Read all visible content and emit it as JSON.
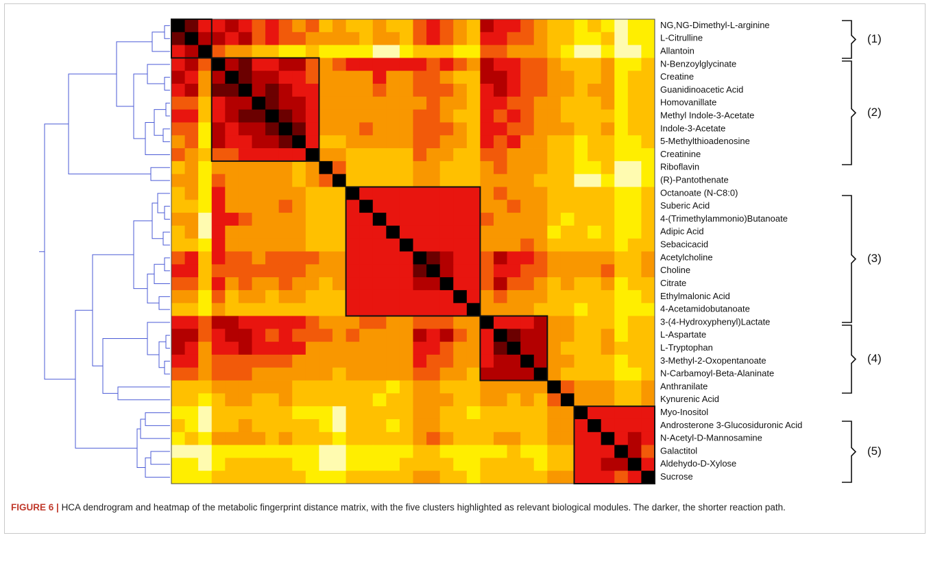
{
  "chart_data": {
    "type": "heatmap",
    "labels": [
      "NG,NG-Dimethyl-L-arginine",
      "L-Citrulline",
      "Allantoin",
      "N-Benzoylglycinate",
      "Creatine",
      "Guanidinoacetic Acid",
      "Homovanillate",
      "Methyl Indole-3-Acetate",
      "Indole-3-Acetate",
      "5-Methylthioadenosine",
      "Creatinine",
      "Riboflavin",
      "(R)-Pantothenate",
      "Octanoate (N-C8:0)",
      "Suberic Acid",
      "4-(Trimethylammonio)Butanoate",
      "Adipic Acid",
      "Sebacicacid",
      "Acetylcholine",
      "Choline",
      "Citrate",
      "Ethylmalonic Acid",
      "4-Acetamidobutanoate",
      "3-(4-Hydroxyphenyl)Lactate",
      "L-Aspartate",
      "L-Tryptophan",
      "3-Methyl-2-Oxopentanoate",
      "N-Carbamoyl-Beta-Alaninate",
      "Anthranilate",
      "Kynurenic Acid",
      "Myo-Inositol",
      "Androsterone 3-Glucosiduronic Acid",
      "N-Acetyl-D-Mannosamine",
      "Galactitol",
      "Aldehydo-D-Xylose",
      "Sucrose"
    ],
    "colors": [
      "#000000",
      "#6b0000",
      "#b30000",
      "#e8150f",
      "#f25a0a",
      "#f99700",
      "#ffc000",
      "#ffee00",
      "#fffbb0"
    ],
    "values": [
      [
        0,
        1,
        3,
        3,
        2,
        3,
        4,
        3,
        4,
        5,
        4,
        6,
        5,
        6,
        6,
        5,
        6,
        6,
        4,
        3,
        4,
        5,
        6,
        2,
        3,
        3,
        4,
        5,
        6,
        6,
        7,
        6,
        7,
        8,
        7,
        7
      ],
      [
        1,
        0,
        2,
        2,
        3,
        2,
        4,
        3,
        4,
        4,
        5,
        5,
        5,
        5,
        6,
        5,
        5,
        6,
        4,
        3,
        4,
        5,
        6,
        3,
        3,
        4,
        4,
        5,
        6,
        6,
        7,
        7,
        6,
        8,
        7,
        7
      ],
      [
        3,
        2,
        0,
        4,
        5,
        5,
        6,
        6,
        7,
        7,
        6,
        7,
        7,
        7,
        7,
        8,
        8,
        7,
        6,
        6,
        6,
        7,
        7,
        4,
        4,
        5,
        5,
        5,
        6,
        7,
        8,
        8,
        7,
        8,
        8,
        7
      ],
      [
        3,
        2,
        4,
        0,
        2,
        1,
        3,
        3,
        2,
        2,
        4,
        5,
        4,
        3,
        3,
        3,
        3,
        3,
        3,
        4,
        3,
        4,
        5,
        2,
        3,
        3,
        4,
        4,
        5,
        6,
        6,
        6,
        5,
        7,
        7,
        6
      ],
      [
        2,
        3,
        5,
        2,
        0,
        1,
        2,
        2,
        3,
        3,
        4,
        5,
        5,
        5,
        5,
        3,
        5,
        5,
        4,
        4,
        5,
        6,
        6,
        2,
        2,
        3,
        4,
        4,
        5,
        5,
        6,
        6,
        5,
        7,
        6,
        6
      ],
      [
        3,
        2,
        5,
        1,
        1,
        0,
        2,
        1,
        2,
        3,
        3,
        5,
        5,
        5,
        5,
        4,
        5,
        5,
        4,
        4,
        4,
        5,
        6,
        3,
        2,
        3,
        4,
        4,
        5,
        5,
        6,
        5,
        5,
        7,
        6,
        6
      ],
      [
        4,
        4,
        6,
        3,
        2,
        2,
        0,
        1,
        2,
        2,
        3,
        5,
        5,
        5,
        5,
        5,
        5,
        5,
        5,
        4,
        5,
        5,
        6,
        3,
        3,
        4,
        4,
        5,
        5,
        6,
        6,
        6,
        5,
        7,
        6,
        6
      ],
      [
        3,
        3,
        6,
        3,
        2,
        1,
        1,
        0,
        1,
        2,
        3,
        5,
        5,
        5,
        5,
        5,
        5,
        5,
        4,
        4,
        5,
        6,
        6,
        3,
        4,
        3,
        4,
        5,
        5,
        6,
        6,
        6,
        6,
        7,
        6,
        6
      ],
      [
        4,
        4,
        7,
        2,
        3,
        2,
        2,
        1,
        0,
        1,
        3,
        5,
        5,
        5,
        4,
        5,
        5,
        5,
        4,
        4,
        4,
        5,
        6,
        3,
        3,
        4,
        4,
        5,
        5,
        5,
        6,
        6,
        5,
        7,
        6,
        6
      ],
      [
        5,
        4,
        7,
        2,
        3,
        3,
        2,
        2,
        1,
        0,
        3,
        6,
        6,
        5,
        5,
        5,
        5,
        5,
        4,
        4,
        5,
        5,
        6,
        3,
        4,
        3,
        5,
        5,
        6,
        6,
        7,
        6,
        6,
        7,
        7,
        6
      ],
      [
        4,
        5,
        6,
        4,
        4,
        3,
        3,
        3,
        3,
        3,
        0,
        5,
        5,
        6,
        6,
        6,
        6,
        6,
        4,
        5,
        5,
        6,
        6,
        4,
        4,
        5,
        5,
        5,
        6,
        6,
        7,
        6,
        6,
        7,
        7,
        7
      ],
      [
        6,
        5,
        7,
        5,
        5,
        5,
        5,
        5,
        5,
        6,
        5,
        0,
        4,
        6,
        6,
        6,
        6,
        6,
        5,
        5,
        6,
        6,
        6,
        5,
        4,
        5,
        5,
        5,
        6,
        6,
        7,
        7,
        6,
        8,
        8,
        7
      ],
      [
        5,
        5,
        7,
        4,
        5,
        5,
        5,
        5,
        5,
        6,
        5,
        4,
        0,
        6,
        6,
        6,
        6,
        6,
        5,
        5,
        6,
        6,
        6,
        5,
        5,
        5,
        5,
        6,
        6,
        6,
        8,
        8,
        7,
        8,
        8,
        7
      ],
      [
        6,
        5,
        7,
        3,
        5,
        5,
        5,
        5,
        5,
        5,
        6,
        6,
        6,
        0,
        3,
        3,
        3,
        3,
        3,
        3,
        3,
        3,
        3,
        5,
        4,
        5,
        5,
        5,
        6,
        6,
        6,
        6,
        6,
        7,
        7,
        6
      ],
      [
        6,
        6,
        7,
        3,
        5,
        5,
        5,
        5,
        4,
        5,
        6,
        6,
        6,
        3,
        0,
        3,
        3,
        3,
        3,
        3,
        3,
        3,
        3,
        5,
        5,
        4,
        5,
        5,
        6,
        6,
        6,
        6,
        6,
        7,
        7,
        6
      ],
      [
        5,
        5,
        8,
        3,
        3,
        4,
        5,
        5,
        5,
        5,
        6,
        6,
        6,
        3,
        3,
        0,
        3,
        3,
        3,
        3,
        3,
        3,
        3,
        4,
        5,
        5,
        5,
        5,
        6,
        7,
        6,
        6,
        6,
        7,
        7,
        6
      ],
      [
        6,
        5,
        8,
        3,
        5,
        5,
        5,
        5,
        5,
        5,
        6,
        6,
        6,
        3,
        3,
        3,
        0,
        3,
        3,
        3,
        3,
        3,
        3,
        5,
        5,
        5,
        5,
        5,
        7,
        6,
        6,
        7,
        6,
        7,
        7,
        6
      ],
      [
        6,
        6,
        7,
        3,
        5,
        5,
        5,
        5,
        5,
        5,
        6,
        6,
        6,
        3,
        3,
        3,
        3,
        0,
        3,
        3,
        3,
        3,
        3,
        5,
        5,
        5,
        4,
        5,
        6,
        6,
        6,
        6,
        6,
        7,
        6,
        6
      ],
      [
        4,
        3,
        6,
        3,
        4,
        4,
        5,
        4,
        4,
        4,
        4,
        5,
        5,
        3,
        3,
        3,
        3,
        3,
        0,
        1,
        2,
        3,
        3,
        4,
        2,
        3,
        3,
        4,
        5,
        5,
        5,
        5,
        5,
        6,
        6,
        5
      ],
      [
        3,
        3,
        6,
        4,
        4,
        4,
        4,
        4,
        4,
        4,
        5,
        5,
        5,
        3,
        3,
        3,
        3,
        3,
        1,
        0,
        2,
        3,
        3,
        4,
        3,
        3,
        4,
        4,
        5,
        5,
        5,
        5,
        4,
        6,
        6,
        5
      ],
      [
        4,
        4,
        6,
        3,
        5,
        4,
        5,
        5,
        4,
        5,
        5,
        6,
        5,
        3,
        3,
        3,
        3,
        3,
        2,
        2,
        0,
        3,
        3,
        4,
        2,
        4,
        4,
        5,
        6,
        5,
        6,
        6,
        5,
        7,
        6,
        6
      ],
      [
        5,
        5,
        7,
        4,
        6,
        5,
        5,
        6,
        5,
        5,
        6,
        6,
        6,
        3,
        3,
        3,
        3,
        3,
        3,
        3,
        3,
        0,
        3,
        5,
        4,
        5,
        5,
        5,
        6,
        6,
        6,
        6,
        6,
        7,
        7,
        6
      ],
      [
        6,
        6,
        7,
        5,
        6,
        6,
        6,
        6,
        6,
        6,
        6,
        6,
        6,
        3,
        3,
        3,
        3,
        3,
        3,
        3,
        3,
        3,
        0,
        5,
        5,
        5,
        5,
        6,
        6,
        6,
        7,
        6,
        6,
        7,
        7,
        7
      ],
      [
        3,
        3,
        4,
        2,
        2,
        3,
        3,
        3,
        3,
        3,
        4,
        5,
        5,
        5,
        4,
        4,
        5,
        5,
        4,
        4,
        4,
        5,
        5,
        0,
        3,
        3,
        3,
        2,
        5,
        5,
        6,
        6,
        6,
        7,
        6,
        6
      ],
      [
        2,
        2,
        4,
        3,
        2,
        2,
        3,
        4,
        3,
        4,
        4,
        4,
        5,
        4,
        5,
        5,
        5,
        5,
        2,
        3,
        2,
        4,
        5,
        3,
        0,
        1,
        2,
        2,
        5,
        5,
        6,
        6,
        5,
        7,
        6,
        6
      ],
      [
        2,
        3,
        5,
        3,
        3,
        2,
        3,
        3,
        3,
        3,
        5,
        5,
        5,
        5,
        5,
        5,
        5,
        5,
        3,
        3,
        4,
        5,
        5,
        3,
        1,
        0,
        2,
        2,
        5,
        6,
        6,
        6,
        5,
        6,
        6,
        6
      ],
      [
        3,
        3,
        5,
        4,
        4,
        4,
        4,
        4,
        4,
        5,
        5,
        5,
        5,
        5,
        5,
        5,
        5,
        5,
        3,
        4,
        4,
        5,
        5,
        3,
        2,
        2,
        0,
        2,
        5,
        5,
        6,
        6,
        6,
        7,
        6,
        6
      ],
      [
        4,
        4,
        5,
        4,
        4,
        4,
        5,
        5,
        5,
        5,
        5,
        5,
        6,
        5,
        5,
        5,
        5,
        5,
        4,
        4,
        5,
        5,
        6,
        2,
        2,
        2,
        2,
        0,
        5,
        6,
        6,
        6,
        6,
        7,
        7,
        6
      ],
      [
        6,
        6,
        6,
        5,
        5,
        5,
        5,
        5,
        5,
        6,
        6,
        6,
        6,
        6,
        6,
        6,
        7,
        6,
        5,
        5,
        6,
        6,
        6,
        5,
        5,
        5,
        5,
        5,
        0,
        4,
        5,
        5,
        5,
        6,
        6,
        5
      ],
      [
        6,
        6,
        7,
        6,
        5,
        5,
        6,
        6,
        5,
        6,
        6,
        6,
        6,
        6,
        6,
        7,
        6,
        6,
        5,
        5,
        5,
        6,
        6,
        5,
        5,
        6,
        5,
        6,
        4,
        0,
        5,
        5,
        5,
        6,
        6,
        5
      ],
      [
        7,
        7,
        8,
        6,
        6,
        6,
        6,
        6,
        6,
        7,
        7,
        7,
        8,
        6,
        6,
        6,
        6,
        6,
        5,
        5,
        6,
        6,
        7,
        6,
        6,
        6,
        6,
        6,
        5,
        5,
        0,
        3,
        3,
        3,
        3,
        3
      ],
      [
        6,
        7,
        8,
        6,
        6,
        5,
        6,
        6,
        6,
        6,
        6,
        7,
        8,
        6,
        6,
        6,
        7,
        6,
        5,
        5,
        6,
        6,
        6,
        6,
        6,
        6,
        6,
        6,
        5,
        5,
        3,
        0,
        3,
        3,
        3,
        3
      ],
      [
        7,
        6,
        7,
        5,
        5,
        5,
        5,
        6,
        5,
        6,
        6,
        6,
        7,
        6,
        6,
        6,
        6,
        6,
        5,
        4,
        5,
        6,
        6,
        6,
        5,
        5,
        6,
        6,
        5,
        5,
        3,
        3,
        0,
        3,
        2,
        3
      ],
      [
        8,
        8,
        8,
        7,
        7,
        7,
        7,
        7,
        7,
        7,
        7,
        8,
        8,
        7,
        7,
        7,
        7,
        7,
        6,
        6,
        7,
        7,
        7,
        7,
        7,
        6,
        7,
        7,
        6,
        6,
        3,
        3,
        3,
        0,
        2,
        4
      ],
      [
        7,
        7,
        8,
        7,
        6,
        6,
        6,
        6,
        6,
        7,
        7,
        8,
        8,
        7,
        7,
        7,
        7,
        6,
        6,
        6,
        6,
        7,
        7,
        6,
        6,
        6,
        6,
        7,
        6,
        6,
        3,
        3,
        2,
        2,
        0,
        3
      ],
      [
        7,
        7,
        7,
        6,
        6,
        6,
        6,
        6,
        6,
        6,
        7,
        7,
        7,
        6,
        6,
        6,
        6,
        6,
        5,
        5,
        6,
        6,
        7,
        6,
        6,
        6,
        6,
        6,
        5,
        5,
        3,
        3,
        3,
        4,
        3,
        0
      ]
    ],
    "clusters": [
      {
        "label": "(1)"
      },
      {
        "label": "(2)"
      },
      {
        "label": "(3)"
      },
      {
        "label": "(4)"
      },
      {
        "label": "(5)"
      }
    ]
  },
  "caption": {
    "figure": "FIGURE 6 |",
    "text": "HCA dendrogram and heatmap of the metabolic fingerprint distance matrix, with the five clusters highlighted as relevant biological modules. The darker, the shorter reaction path."
  }
}
